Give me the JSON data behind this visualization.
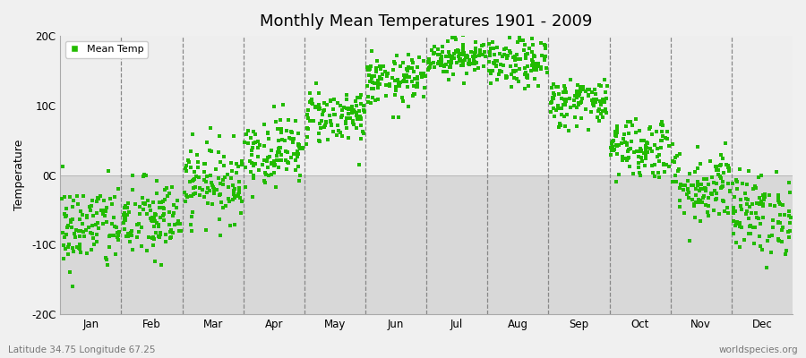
{
  "title": "Monthly Mean Temperatures 1901 - 2009",
  "ylabel": "Temperature",
  "subtitle_left": "Latitude 34.75 Longitude 67.25",
  "subtitle_right": "worldspecies.org",
  "dot_color": "#22bb00",
  "bg_lower": "#d8d8d8",
  "bg_upper": "#eeeeee",
  "fig_bg_color": "#f0f0f0",
  "ylim": [
    -20,
    20
  ],
  "ytick_labels": [
    "-20C",
    "-10C",
    "0C",
    "10C",
    "20C"
  ],
  "ytick_values": [
    -20,
    -10,
    0,
    10,
    20
  ],
  "months": [
    "Jan",
    "Feb",
    "Mar",
    "Apr",
    "May",
    "Jun",
    "Jul",
    "Aug",
    "Sep",
    "Oct",
    "Nov",
    "Dec"
  ],
  "num_years": 109,
  "seed": 42,
  "mean_temps": [
    -7.5,
    -6.5,
    -1.0,
    3.5,
    8.5,
    13.5,
    17.0,
    16.0,
    10.5,
    4.0,
    -1.5,
    -5.5
  ],
  "std_temps": [
    3.2,
    3.0,
    2.8,
    2.5,
    2.0,
    1.8,
    1.3,
    1.8,
    1.8,
    2.3,
    2.8,
    3.0
  ]
}
